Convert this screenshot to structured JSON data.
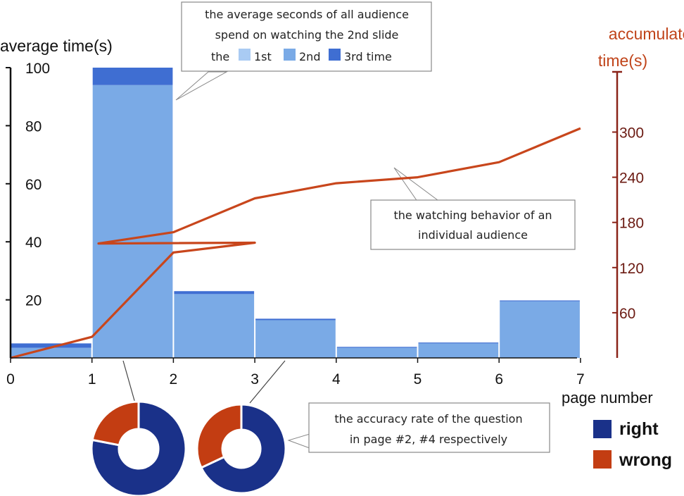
{
  "chart_data": [
    {
      "type": "bar",
      "stacked": true,
      "ylabel": "average time(s)",
      "xlabel": "page number",
      "xlim": [
        0,
        7
      ],
      "ylim": [
        0,
        100
      ],
      "x_ticks": [
        "0",
        "1",
        "2",
        "3",
        "4",
        "5",
        "6",
        "7"
      ],
      "y_ticks": [
        "20",
        "40",
        "60",
        "80",
        "100"
      ],
      "bins": [
        [
          0,
          1
        ],
        [
          1,
          2
        ],
        [
          2,
          3
        ],
        [
          3,
          4
        ],
        [
          4,
          5
        ],
        [
          5,
          6
        ],
        [
          6,
          7
        ]
      ],
      "series": [
        {
          "name": "1st",
          "color": "#a9cbf3",
          "values": [
            0,
            0,
            0,
            0,
            0,
            0,
            0
          ]
        },
        {
          "name": "2nd",
          "color": "#7aaae6",
          "values": [
            3.5,
            94,
            22,
            13,
            3.5,
            5,
            19.5
          ]
        },
        {
          "name": "3rd time",
          "color": "#3f6ed2",
          "values": [
            1.5,
            6,
            1,
            0.5,
            0.3,
            0.3,
            0.3
          ]
        }
      ],
      "legend_prefix": "the"
    },
    {
      "type": "line",
      "ylabel": "accumulated time(s)",
      "ylim": [
        0,
        380
      ],
      "y_ticks": [
        "60",
        "120",
        "180",
        "240",
        "300"
      ],
      "line_color": "#c8461c",
      "x": [
        0,
        1,
        2,
        3,
        1.08,
        2,
        3,
        4,
        5,
        6,
        7
      ],
      "y": [
        0,
        28,
        140,
        153,
        152,
        167,
        212,
        232,
        240,
        260,
        305
      ]
    },
    {
      "type": "pie",
      "title": "page #2",
      "labels": [
        "right",
        "wrong"
      ],
      "values": [
        78,
        22
      ],
      "colors": [
        "#1a3189",
        "#c33d12"
      ]
    },
    {
      "type": "pie",
      "title": "page #4",
      "labels": [
        "right",
        "wrong"
      ],
      "values": [
        68,
        32
      ],
      "colors": [
        "#1a3189",
        "#c33d12"
      ]
    }
  ],
  "annotations": {
    "bar_note": [
      "the average seconds of all audience",
      "spend on watching the 2nd slide"
    ],
    "line_note": [
      "the watching behavior of an",
      "individual audience"
    ],
    "pie_note": [
      "the accuracy rate of the question",
      "in page #2, #4 respectively"
    ]
  },
  "legend": {
    "right_label": "right",
    "wrong_label": "wrong"
  },
  "colors": {
    "axis_left": "#111111",
    "axis_right": "#8a2318",
    "right_title": "#c0441a"
  }
}
